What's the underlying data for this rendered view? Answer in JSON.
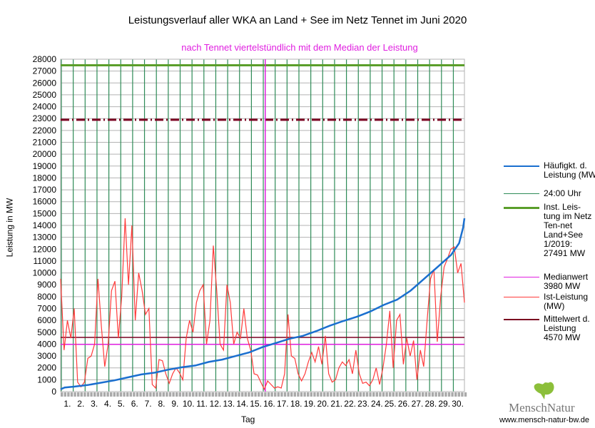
{
  "chart_data": {
    "type": "line",
    "title": "Leistungsverlauf aller WKA an Land + See im Netz Tennet im Juni 2020",
    "subtitle": "nach Tennet viertelstündlich mit dem Median der Leistung",
    "xlabel": "Tag",
    "ylabel": "Leistung in MW",
    "ylim": [
      0,
      28000
    ],
    "ytick_step": 1000,
    "xlim": [
      0,
      30
    ],
    "x_tick_labels": [
      "1.",
      "2.",
      "3.",
      "4.",
      "5.",
      "6.",
      "7.",
      "8.",
      "9.",
      "10.",
      "11.",
      "12.",
      "13.",
      "14.",
      "15.",
      "16.",
      "17.",
      "18.",
      "19.",
      "20.",
      "21.",
      "22.",
      "23.",
      "24.",
      "25.",
      "26.",
      "27.",
      "28.",
      "29.",
      "30."
    ],
    "grid": true,
    "legend_placement": "right",
    "series": [
      {
        "name": "Häufigkt. d. Leistung (MW)",
        "color": "#1a6fcf",
        "points_day_value": [
          [
            0,
            200
          ],
          [
            0.3,
            350
          ],
          [
            1,
            420
          ],
          [
            2,
            550
          ],
          [
            3,
            750
          ],
          [
            4,
            950
          ],
          [
            5,
            1200
          ],
          [
            6,
            1450
          ],
          [
            7,
            1600
          ],
          [
            8,
            1850
          ],
          [
            9,
            2050
          ],
          [
            10,
            2200
          ],
          [
            11,
            2500
          ],
          [
            12,
            2700
          ],
          [
            13,
            3000
          ],
          [
            14,
            3300
          ],
          [
            15,
            3750
          ],
          [
            16,
            4100
          ],
          [
            17,
            4450
          ],
          [
            18,
            4700
          ],
          [
            19,
            5100
          ],
          [
            20,
            5550
          ],
          [
            21,
            5950
          ],
          [
            22,
            6300
          ],
          [
            23,
            6750
          ],
          [
            24,
            7300
          ],
          [
            25,
            7750
          ],
          [
            26,
            8500
          ],
          [
            27,
            9500
          ],
          [
            28,
            10500
          ],
          [
            29,
            11500
          ],
          [
            29.6,
            12500
          ],
          [
            29.9,
            13800
          ],
          [
            30,
            14600
          ]
        ]
      },
      {
        "name": "Ist-Leistung (MW)",
        "color": "#ff3b3b",
        "values_6h": [
          9500,
          3500,
          6000,
          4500,
          7000,
          800,
          400,
          800,
          2800,
          3000,
          4000,
          9500,
          5500,
          2100,
          4000,
          8500,
          9300,
          4500,
          8000,
          14600,
          9000,
          14000,
          6000,
          10000,
          8500,
          6500,
          7000,
          600,
          300,
          2700,
          2600,
          1500,
          700,
          1500,
          2000,
          1600,
          1000,
          4500,
          6000,
          5000,
          7500,
          8500,
          9000,
          4000,
          6000,
          12300,
          8500,
          4000,
          3500,
          9000,
          7500,
          4000,
          5000,
          4500,
          7000,
          4500,
          3500,
          1500,
          1400,
          800,
          200,
          900,
          600,
          300,
          400,
          300,
          1500,
          6500,
          3000,
          2800,
          1500,
          900,
          1500,
          2500,
          3300,
          2500,
          3800,
          2300,
          4700,
          1500,
          800,
          1000,
          2000,
          2500,
          2200,
          2700,
          1500,
          3500,
          1500,
          700,
          800,
          500,
          1000,
          2000,
          600,
          2000,
          4000,
          6800,
          2000,
          6000,
          6500,
          2300,
          4500,
          3000,
          4300,
          1000,
          3500,
          2100,
          6000,
          9500,
          10300,
          4200,
          8000,
          10500,
          11200,
          12000,
          12200,
          10000,
          10800,
          7500
        ]
      },
      {
        "name": "Inst. Leistung im Netz Tennet Land+See 1/2019: 27491 MW",
        "color": "#5a9e2a",
        "value": 27491
      },
      {
        "name": "Medianwert 3980 MW",
        "color": "#e020e0",
        "value": 3980,
        "crossing_day": 15.2
      },
      {
        "name": "Mittelwert d. Leistung 4570 MW",
        "color": "#7a0020",
        "value": 4570
      },
      {
        "name": "24:00 Uhr",
        "color": "#2e8b57"
      },
      {
        "name": "dashed reference",
        "color": "#7a0020",
        "value": 22900
      }
    ]
  },
  "legend": [
    {
      "label": "Häufigkt. d. Leistung (MW)",
      "color": "#1a6fcf"
    },
    {
      "label": "24:00 Uhr",
      "color": "#2e8b57"
    },
    {
      "label": "Inst. Leis-tung im Netz Ten-net Land+See 1/2019: 27491 MW",
      "color": "#5a9e2a"
    },
    {
      "label": "Medianwert 3980 MW",
      "color": "#e020e0"
    },
    {
      "label": "Ist-Leistung (MW)",
      "color": "#ff3b3b"
    },
    {
      "label": "Mittelwert d. Leistung 4570 MW",
      "color": "#7a0020"
    }
  ],
  "logo": {
    "name": "MenschNatur",
    "url": "www.mensch-natur-bw.de"
  }
}
